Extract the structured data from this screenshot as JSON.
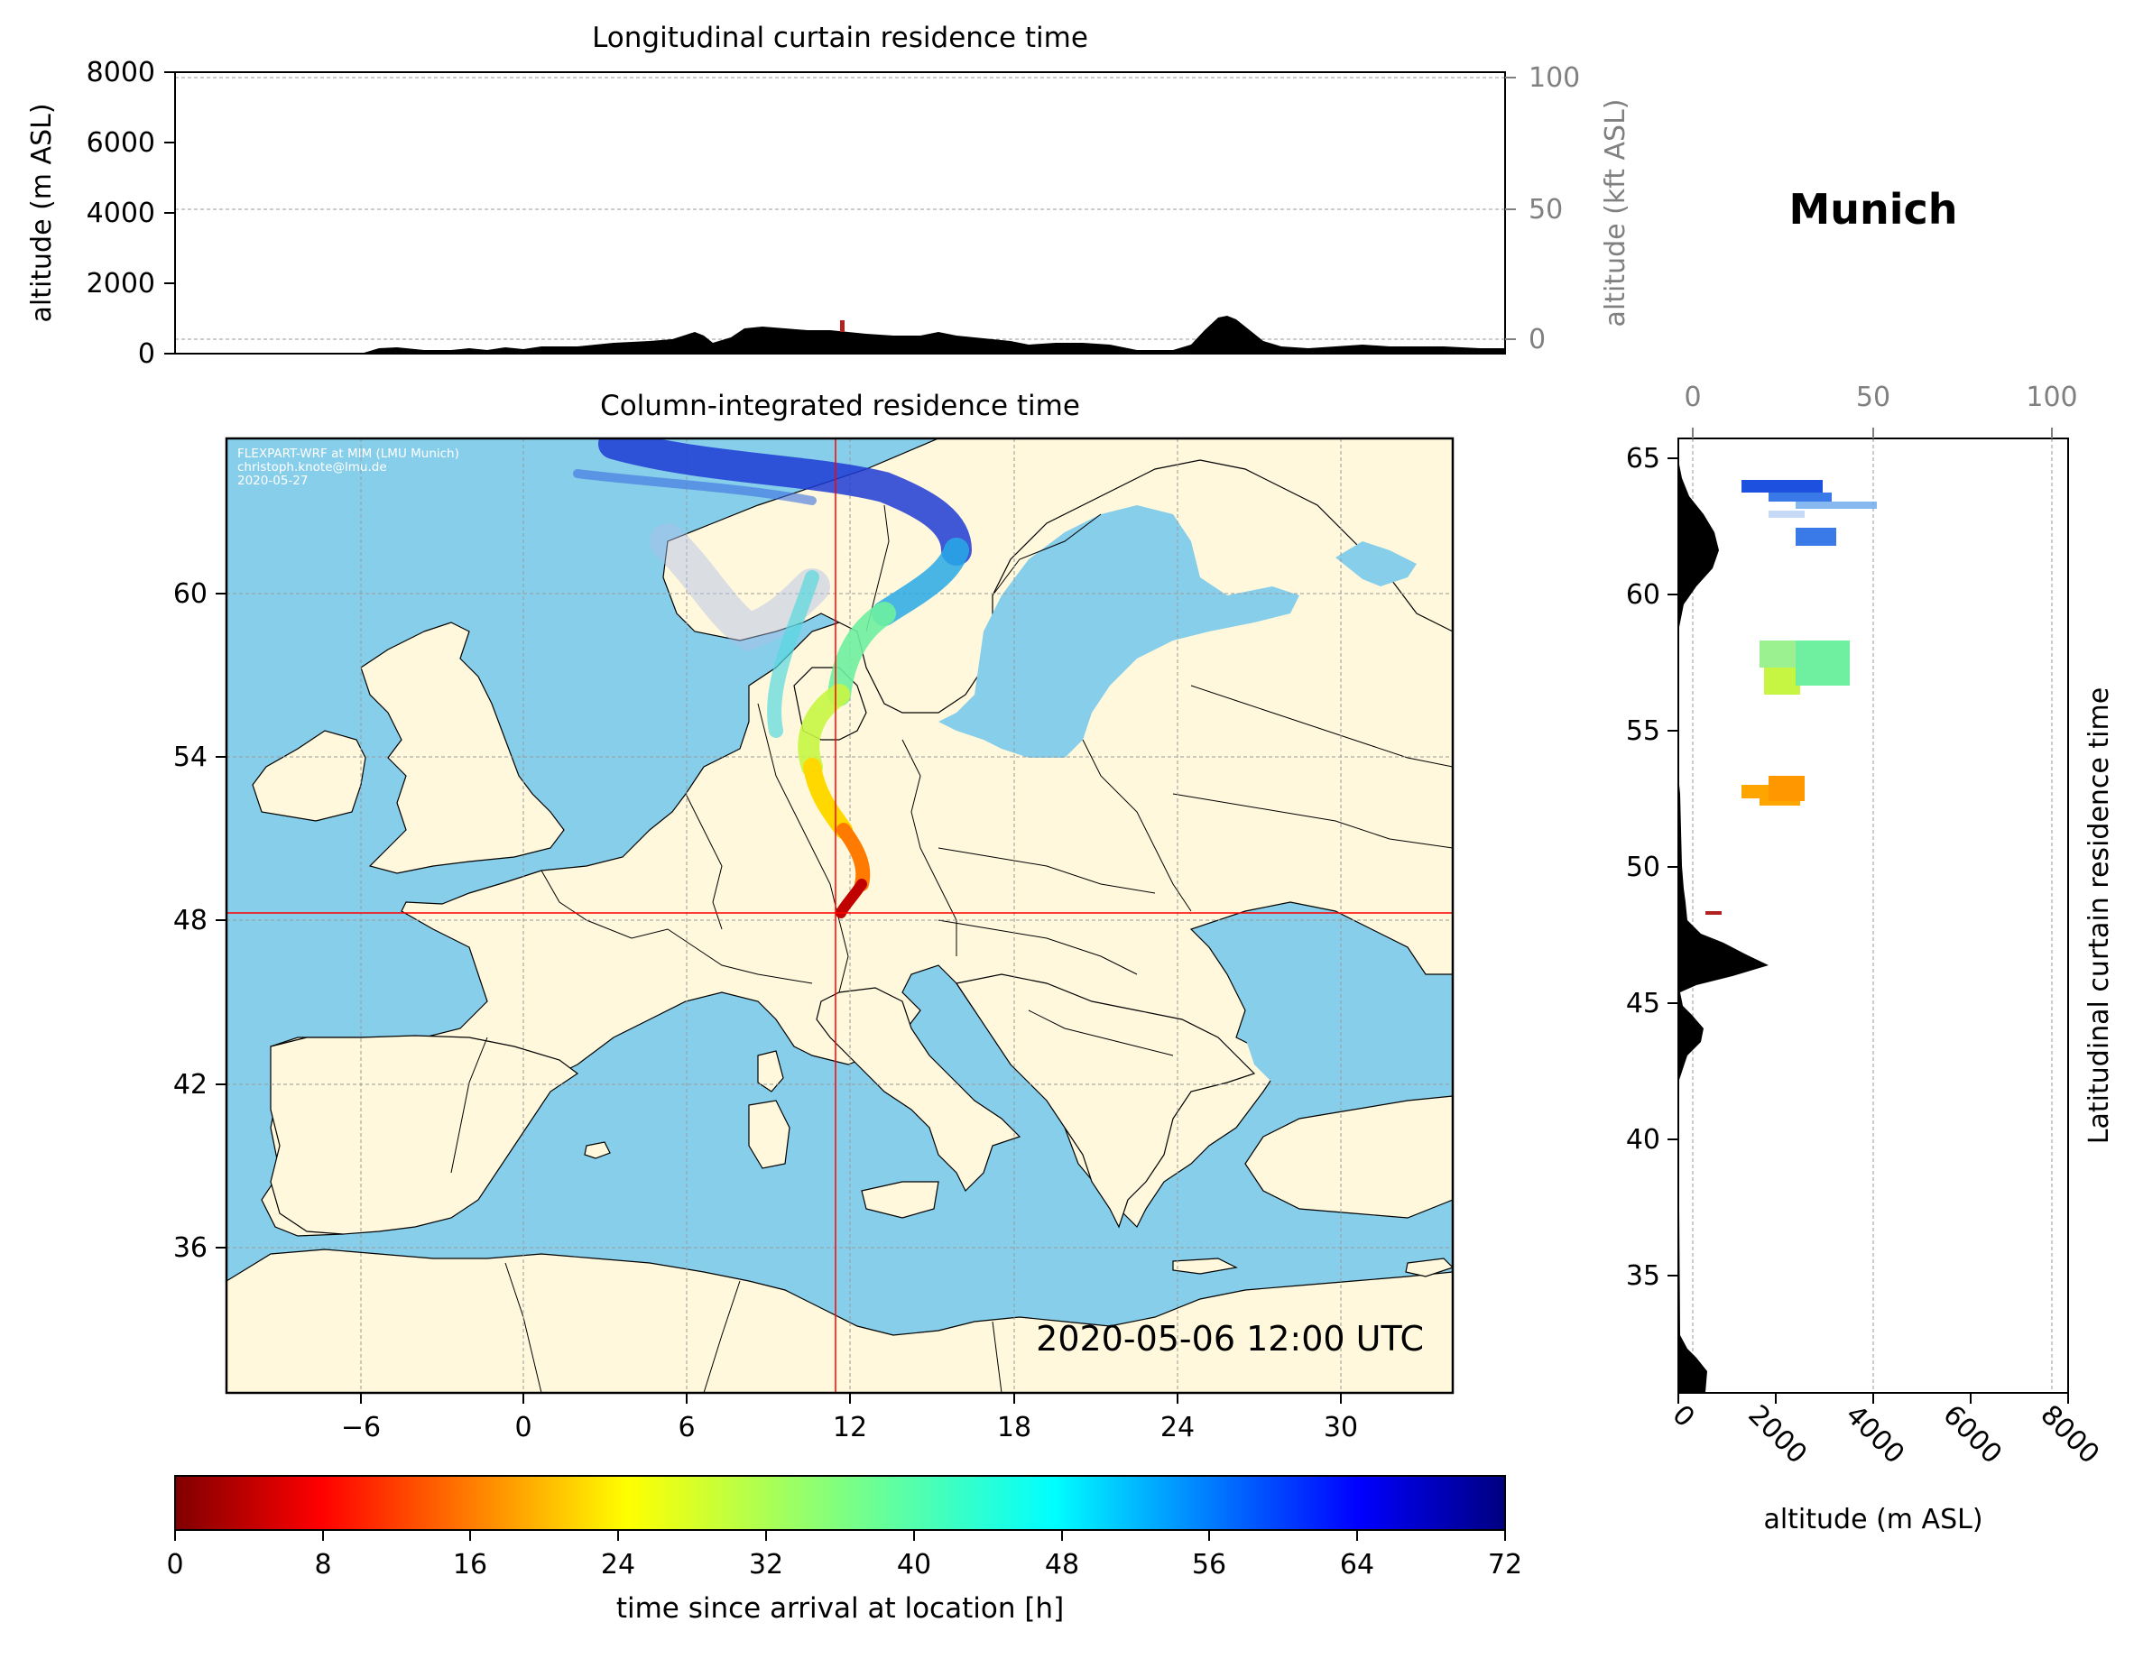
{
  "location": "Munich",
  "timestamp": "2020-05-06 12:00 UTC",
  "credits": [
    "FLEXPART-WRF at MIM (LMU Munich)",
    "christoph.knote@lmu.de",
    "2020-05-27"
  ],
  "colors": {
    "ocean": "#87ceeb",
    "land": "#fff8dc",
    "border": "#000000",
    "marker": "#ff0000",
    "terrain": "#000000"
  },
  "top_panel": {
    "title": "Longitudinal curtain residence time",
    "ylabel": "altitude (m ASL)",
    "ylabel_right": "altitude (kft ASL)",
    "yticks": [
      "0",
      "2000",
      "4000",
      "6000",
      "8000"
    ],
    "yticks_right": [
      "0",
      "50",
      "100"
    ]
  },
  "map_panel": {
    "title": "Column-integrated residence time",
    "xticks": [
      "−6",
      "0",
      "6",
      "12",
      "18",
      "24",
      "30"
    ],
    "yticks": [
      "36",
      "42",
      "48",
      "54",
      "60"
    ],
    "receptor": {
      "lon": 11.6,
      "lat": 48.1
    }
  },
  "right_panel": {
    "ylabel": "Latitudinal curtain residence time",
    "xlabel": "altitude (m ASL)",
    "xticks": [
      "0",
      "2000",
      "4000",
      "6000",
      "8000"
    ],
    "xticks_top": [
      "0",
      "50",
      "100"
    ],
    "yticks": [
      "35",
      "40",
      "45",
      "50",
      "55",
      "60",
      "65"
    ]
  },
  "colorbar": {
    "label": "time since arrival at location [h]",
    "ticks": [
      "0",
      "8",
      "16",
      "24",
      "32",
      "40",
      "48",
      "56",
      "64",
      "72"
    ],
    "min": 0,
    "max": 72,
    "colormap": "jet_r"
  }
}
